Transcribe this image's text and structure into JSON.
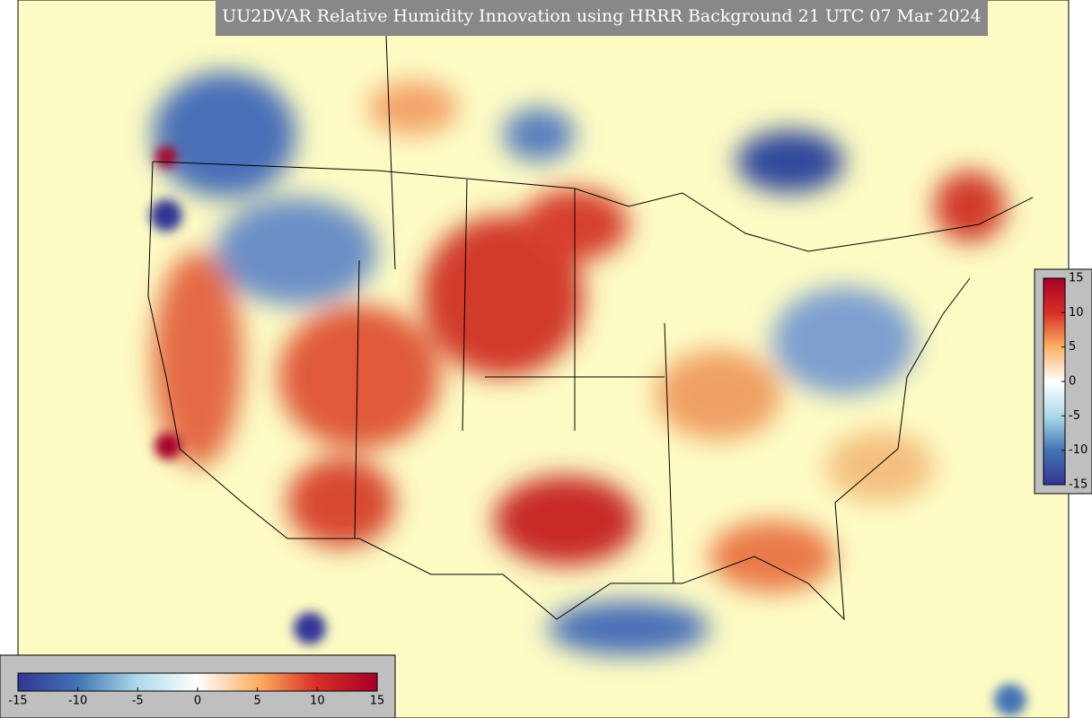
{
  "title": "UU2DVAR Relative Humidity Innovation using HRRR Background 21 UTC 07 Mar 2024",
  "horizontal_colorbar": {
    "lim": [
      -15,
      15
    ],
    "ticks": [
      -15,
      -10,
      -5,
      0,
      5,
      10,
      15
    ]
  },
  "vertical_colorbar": {
    "lim": [
      -15,
      15
    ],
    "ticks": [
      -15,
      -10,
      -5,
      0,
      5,
      10,
      15
    ]
  }
}
